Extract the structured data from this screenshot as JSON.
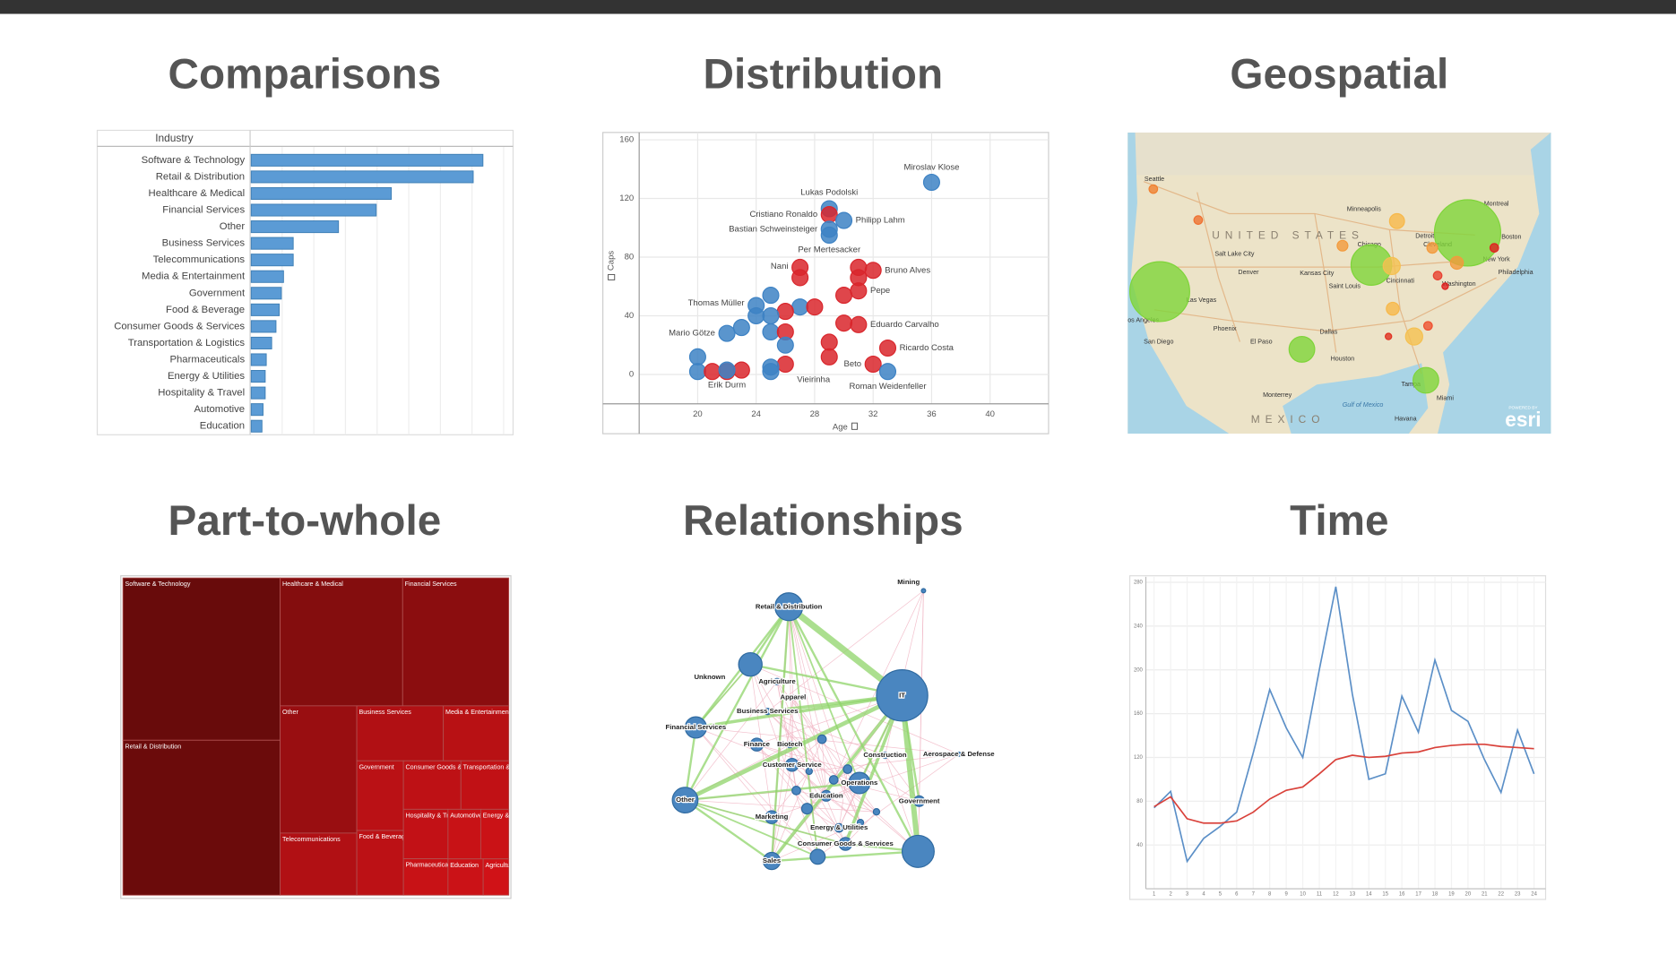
{
  "chart_data": [
    {
      "type": "bar",
      "title": "Comparisons",
      "header": "Industry",
      "categories": [
        "Software & Technology",
        "Retail & Distribution",
        "Healthcare & Medical",
        "Financial Services",
        "Other",
        "Business Services",
        "Telecommunications",
        "Media & Entertainment",
        "Government",
        "Food & Beverage",
        "Consumer Goods & Services",
        "Transportation & Logistics",
        "Pharmaceuticals",
        "Energy & Utilities",
        "Hospitality & Travel",
        "Automotive",
        "Education"
      ],
      "values": [
        215,
        206,
        130,
        116,
        81,
        39,
        39,
        30,
        28,
        26,
        23,
        19,
        14,
        13,
        13,
        11,
        10
      ],
      "color": "#5b9bd5",
      "xlim": [
        0,
        240
      ]
    },
    {
      "type": "scatter",
      "title": "Distribution",
      "x_label": "Age",
      "y_label": "Caps",
      "x": [
        36,
        29,
        29,
        30,
        29,
        29,
        27,
        27,
        31,
        32,
        31,
        31,
        30,
        27,
        28,
        26,
        25,
        24,
        25,
        24,
        25,
        26,
        26,
        23,
        22,
        30,
        31,
        33,
        29,
        29,
        26,
        32,
        25,
        25,
        20,
        20,
        21,
        22,
        23,
        22,
        33
      ],
      "y": [
        131,
        113,
        109,
        105,
        99,
        95,
        73,
        66,
        73,
        71,
        66,
        57,
        54,
        46,
        46,
        43,
        40,
        47,
        54,
        40,
        29,
        29,
        20,
        32,
        28,
        35,
        34,
        18,
        22,
        12,
        7,
        7,
        5,
        2,
        12,
        2,
        2,
        2,
        3,
        3,
        2
      ],
      "colors": [
        "#3d82c4",
        "#3d82c4",
        "#d9262c",
        "#3d82c4",
        "#3d82c4",
        "#3d82c4",
        "#d9262c",
        "#d9262c",
        "#d9262c",
        "#d9262c",
        "#d9262c",
        "#d9262c",
        "#d9262c",
        "#3d82c4",
        "#d9262c",
        "#d9262c",
        "#3d82c4",
        "#3d82c4",
        "#3d82c4",
        "#3d82c4",
        "#3d82c4",
        "#d9262c",
        "#3d82c4",
        "#3d82c4",
        "#3d82c4",
        "#d9262c",
        "#d9262c",
        "#d9262c",
        "#d9262c",
        "#d9262c",
        "#d9262c",
        "#d9262c",
        "#3d82c4",
        "#3d82c4",
        "#3d82c4",
        "#3d82c4",
        "#d9262c",
        "#d9262c",
        "#d9262c",
        "#3d82c4",
        "#3d82c4"
      ],
      "point_labels": [
        "Miroslav Klose",
        "Lukas Podolski",
        "Cristiano Ronaldo",
        "Philipp Lahm",
        "Bastian Schweinsteiger",
        "Per Mertesacker",
        "Nani",
        null,
        null,
        "Bruno Alves",
        null,
        "Pepe",
        null,
        null,
        null,
        null,
        null,
        "Thomas Müller",
        null,
        null,
        null,
        null,
        null,
        null,
        "Mario Götze",
        null,
        "Eduardo Carvalho",
        "Ricardo Costa",
        null,
        null,
        null,
        "Beto",
        "Vieirinha",
        null,
        null,
        null,
        null,
        "Erik Durm",
        null,
        null,
        "Roman Weidenfeller"
      ],
      "xlim": [
        16,
        44
      ],
      "ylim": [
        -20,
        165
      ],
      "xticks": [
        20,
        24,
        28,
        32,
        36,
        40
      ],
      "yticks": [
        0,
        40,
        80,
        120,
        160
      ],
      "grid": true
    },
    {
      "type": "map",
      "title": "Geospatial",
      "place_labels": [
        "Seattle",
        "Minneapolis",
        "UNITED STATES",
        "Montreal",
        "Boston",
        "Detroit",
        "Chicago",
        "Cleveland",
        "New York",
        "Denver",
        "Salt Lake City",
        "Kansas City",
        "Saint Louis",
        "Cincinnati",
        "Washington",
        "Philadelphia",
        "Las Vegas",
        "Los Angeles",
        "San Diego",
        "Phoenix",
        "El Paso",
        "Dallas",
        "Houston",
        "Tampa",
        "Miami",
        "Monterrey",
        "Gulf of Mexico",
        "MEXICO",
        "Havana"
      ],
      "logo_caption": "POWERED BY",
      "logo": "esri"
    },
    {
      "type": "treemap",
      "title": "Part-to-whole",
      "categories": [
        "Software & Technology",
        "Retail & Distribution",
        "Healthcare & Medical",
        "Financial Services",
        "Other",
        "Telecommunications",
        "Business Services",
        "Media & Entertainment",
        "Government",
        "Food & Beverage",
        "Consumer Goods & Services",
        "Transportation & Logistics",
        "Hospitality & Travel",
        "Pharmaceuticals",
        "Automotive",
        "Energy & Utilities",
        "Education",
        "Agriculture"
      ],
      "values": [
        220,
        210,
        135,
        117,
        84,
        41,
        41,
        31,
        28,
        26,
        24,
        20,
        19,
        14,
        14,
        12,
        11,
        8
      ]
    },
    {
      "type": "network",
      "title": "Relationships",
      "nodes": [
        "Retail & Distribution",
        "Mining",
        "Unknown",
        "IT",
        "Agriculture",
        "Apparel",
        "Business Services",
        "Financial Services",
        "Finance",
        "Biotech",
        "Customer Service",
        "Construction",
        "Aerospace & Defense",
        "Operations",
        "Other",
        "Education",
        "Government",
        "Marketing",
        "Energy & Utilities",
        "Consumer Goods & Services",
        "Sales"
      ]
    },
    {
      "type": "line",
      "title": "Time",
      "x": [
        1,
        2,
        3,
        4,
        5,
        6,
        7,
        8,
        9,
        10,
        11,
        12,
        13,
        14,
        15,
        16,
        17,
        18,
        19,
        20,
        21,
        22,
        23,
        24
      ],
      "xlim": [
        0.5,
        24.7
      ],
      "ylim": [
        0,
        285
      ],
      "xticks": [
        1,
        2,
        3,
        4,
        5,
        6,
        7,
        8,
        9,
        10,
        11,
        12,
        13,
        14,
        15,
        16,
        17,
        18,
        19,
        20,
        21,
        22,
        23,
        24
      ],
      "yticks": [
        40,
        80,
        120,
        160,
        200,
        240,
        280
      ],
      "grid": true,
      "series": [
        {
          "color": "#5b8fc7",
          "values": [
            74,
            89,
            25,
            46,
            57,
            70,
            124,
            182,
            147,
            120,
            200,
            276,
            178,
            100,
            105,
            176,
            143,
            209,
            163,
            153,
            118,
            88,
            145,
            105
          ]
        },
        {
          "color": "#d9413a",
          "values": [
            75,
            84,
            64,
            60,
            60,
            62,
            70,
            82,
            90,
            93,
            105,
            118,
            122,
            120,
            121,
            124,
            125,
            129,
            131,
            132,
            132,
            130,
            129,
            128
          ]
        }
      ]
    }
  ]
}
